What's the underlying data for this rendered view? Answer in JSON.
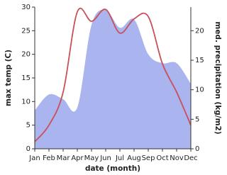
{
  "chart_data": {
    "type": "line",
    "x_label": "date (month)",
    "y_label": "max temp (C)",
    "y2_label": "med. precipitation (kg/m2)",
    "categories": [
      "Jan",
      "Feb",
      "Mar",
      "Apr",
      "May",
      "Jun",
      "Jul",
      "Aug",
      "Sep",
      "Oct",
      "Nov",
      "Dec"
    ],
    "series": [
      {
        "name": "med. precipitation",
        "color": "#aab4ee",
        "axis": "y2",
        "kind": "area",
        "values": [
          6.5,
          9.2,
          8.4,
          7,
          21,
          23.5,
          20.5,
          21.9,
          16,
          14.5,
          14.5,
          11
        ]
      },
      {
        "name": "max temp",
        "color": "#c8505a",
        "axis": "y",
        "kind": "line",
        "values": [
          1.5,
          5,
          12,
          29,
          27,
          29.5,
          24.5,
          27.5,
          28,
          18,
          12,
          5
        ]
      }
    ],
    "ylim": [
      0,
      30
    ],
    "yticks": [
      0,
      5,
      10,
      15,
      20,
      25,
      30
    ],
    "y2lim": [
      0,
      24
    ],
    "y2ticks": [
      0,
      5,
      10,
      15,
      20
    ]
  }
}
